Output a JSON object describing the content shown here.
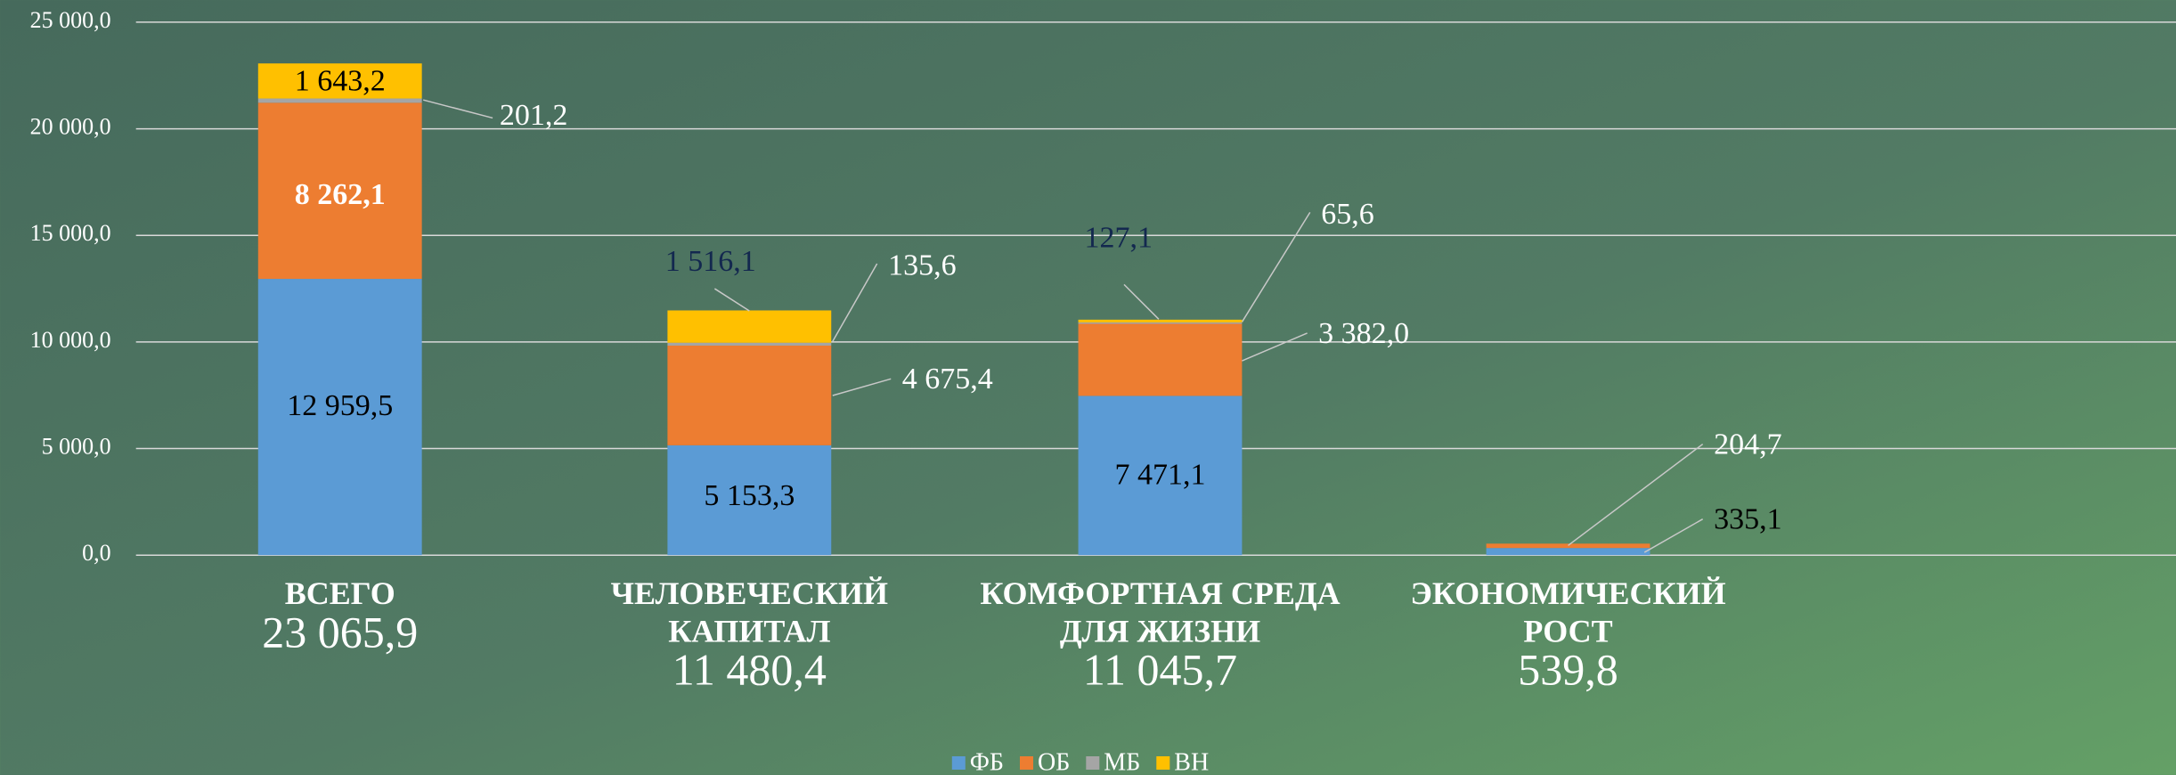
{
  "chart_data": {
    "type": "stacked_bar",
    "categories": [
      [
        "ВСЕГО"
      ],
      [
        "ЧЕЛОВЕЧЕСКИЙ",
        "КАПИТАЛ"
      ],
      [
        "КОМФОРТНАЯ  СРЕДА",
        "ДЛЯ  ЖИЗНИ"
      ],
      [
        "ЭКОНОМИЧЕСКИЙ",
        "РОСТ"
      ]
    ],
    "totals": [
      23065.9,
      11480.4,
      11045.7,
      539.8
    ],
    "totals_labels": [
      "23 065,9",
      "11 480,4",
      "11 045,7",
      "539,8"
    ],
    "series": [
      {
        "name": "ФБ",
        "color": "#5b9bd5",
        "values": [
          12959.5,
          5153.3,
          7471.1,
          335.1
        ],
        "value_labels": [
          "12 959,5",
          "5 153,3",
          "7 471,1",
          "335,1"
        ]
      },
      {
        "name": "ОБ",
        "color": "#ed7d31",
        "values": [
          8262.1,
          4675.4,
          3382.0,
          204.7
        ],
        "value_labels": [
          "8 262,1",
          "4 675,4",
          "3 382,0",
          "204,7"
        ]
      },
      {
        "name": "МБ",
        "color": "#a5a5a5",
        "values": [
          201.2,
          135.6,
          65.6,
          null
        ],
        "value_labels": [
          "201,2",
          "135,6",
          "65,6",
          null
        ]
      },
      {
        "name": "ВН",
        "color": "#ffc000",
        "values": [
          1643.2,
          1516.1,
          127.1,
          null
        ],
        "value_labels": [
          "1 643,2",
          "1 516,1",
          "127,1",
          null
        ]
      }
    ],
    "ylim": [
      0,
      25000
    ],
    "yticks": [
      {
        "value": 0,
        "label": "0,0"
      },
      {
        "value": 5000,
        "label": "5 000,0"
      },
      {
        "value": 10000,
        "label": "10 000,0"
      },
      {
        "value": 15000,
        "label": "15 000,0"
      },
      {
        "value": 20000,
        "label": "20 000,0"
      },
      {
        "value": 25000,
        "label": "25 000,0"
      }
    ],
    "grid": true,
    "legend": "bottom"
  }
}
